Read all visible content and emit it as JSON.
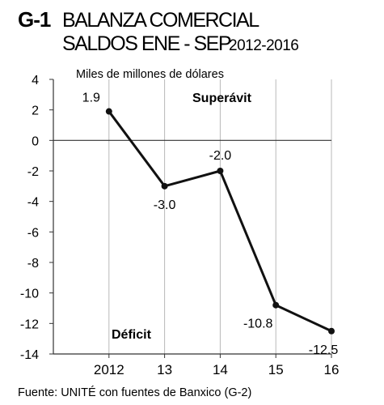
{
  "chart_data": {
    "type": "line",
    "code": "G-1",
    "title_line1": "BALANZA COMERCIAL",
    "title_line2": "SALDOS ENE - SEP",
    "title_range": "2012-2016",
    "ylabel": "Miles de millones de dólares",
    "categories": [
      "2012",
      "13",
      "14",
      "15",
      "16"
    ],
    "series": [
      {
        "values": [
          1.9,
          -3.0,
          -2.0,
          -10.8,
          -12.5
        ]
      }
    ],
    "data_labels": [
      "1.9",
      "-3.0",
      "-2.0",
      "-10.8",
      "-12.5"
    ],
    "ylim": [
      -14,
      4
    ],
    "yticks": [
      4,
      2,
      0,
      -2,
      -4,
      -6,
      -8,
      -10,
      -12,
      -14
    ],
    "ytick_labels": [
      "4",
      "2",
      "0",
      "-2",
      "-4",
      "-6",
      "-8",
      "-10",
      "-12",
      "-14"
    ],
    "grid": "vertical",
    "annotations": {
      "surplus": "Superávit",
      "deficit": "Déficit"
    },
    "source": "Fuente: UNITÉ con fuentes de Banxico (G-2)",
    "colors": {
      "line": "#111111",
      "grid": "#b8b8b8",
      "axis": "#333333"
    }
  }
}
